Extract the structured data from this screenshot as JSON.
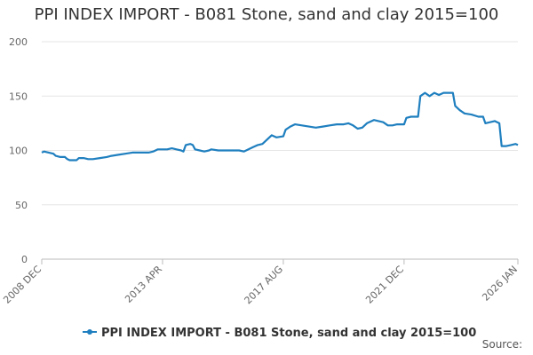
{
  "chart_data": {
    "type": "line",
    "title": "PPI INDEX IMPORT - B081 Stone, sand and clay 2015=100",
    "xlabel": "",
    "ylabel": "",
    "ylim": [
      0,
      200
    ],
    "yticks": [
      0,
      50,
      100,
      150,
      200
    ],
    "x_ticks": [
      "2008 DEC",
      "2013 APR",
      "2017 AUG",
      "2021 DEC",
      "2026 JAN"
    ],
    "x_range": [
      "2008-12",
      "2026-01"
    ],
    "grid": true,
    "legend_position": "bottom",
    "series": [
      {
        "name": "PPI INDEX IMPORT - B081 Stone, sand and clay 2015=100",
        "color": "#1f7fbf",
        "points": [
          [
            "2008-12",
            98
          ],
          [
            "2009-01",
            99
          ],
          [
            "2009-03",
            98
          ],
          [
            "2009-05",
            97
          ],
          [
            "2009-06",
            95
          ],
          [
            "2009-08",
            94
          ],
          [
            "2009-10",
            94
          ],
          [
            "2009-11",
            92
          ],
          [
            "2009-12",
            91
          ],
          [
            "2010-03",
            91
          ],
          [
            "2010-04",
            93
          ],
          [
            "2010-06",
            93
          ],
          [
            "2010-08",
            92
          ],
          [
            "2010-10",
            92
          ],
          [
            "2011-01",
            93
          ],
          [
            "2011-04",
            94
          ],
          [
            "2011-06",
            95
          ],
          [
            "2011-09",
            96
          ],
          [
            "2011-12",
            97
          ],
          [
            "2012-03",
            98
          ],
          [
            "2012-06",
            98
          ],
          [
            "2012-08",
            98
          ],
          [
            "2012-10",
            98
          ],
          [
            "2012-12",
            99
          ],
          [
            "2013-02",
            101
          ],
          [
            "2013-04",
            101
          ],
          [
            "2013-06",
            101
          ],
          [
            "2013-08",
            102
          ],
          [
            "2013-10",
            101
          ],
          [
            "2013-12",
            100
          ],
          [
            "2014-01",
            99
          ],
          [
            "2014-02",
            105
          ],
          [
            "2014-04",
            106
          ],
          [
            "2014-05",
            105
          ],
          [
            "2014-06",
            101
          ],
          [
            "2014-08",
            100
          ],
          [
            "2014-10",
            99
          ],
          [
            "2014-12",
            100
          ],
          [
            "2015-01",
            101
          ],
          [
            "2015-04",
            100
          ],
          [
            "2015-07",
            100
          ],
          [
            "2015-10",
            100
          ],
          [
            "2016-01",
            100
          ],
          [
            "2016-03",
            99
          ],
          [
            "2016-05",
            101
          ],
          [
            "2016-07",
            103
          ],
          [
            "2016-09",
            105
          ],
          [
            "2016-11",
            106
          ],
          [
            "2017-01",
            110
          ],
          [
            "2017-03",
            114
          ],
          [
            "2017-05",
            112
          ],
          [
            "2017-08",
            113
          ],
          [
            "2017-09",
            119
          ],
          [
            "2017-11",
            122
          ],
          [
            "2018-01",
            124
          ],
          [
            "2018-04",
            123
          ],
          [
            "2018-07",
            122
          ],
          [
            "2018-10",
            121
          ],
          [
            "2019-01",
            122
          ],
          [
            "2019-04",
            123
          ],
          [
            "2019-07",
            124
          ],
          [
            "2019-10",
            124
          ],
          [
            "2019-12",
            125
          ],
          [
            "2020-02",
            123
          ],
          [
            "2020-04",
            120
          ],
          [
            "2020-06",
            121
          ],
          [
            "2020-08",
            125
          ],
          [
            "2020-11",
            128
          ],
          [
            "2021-01",
            127
          ],
          [
            "2021-03",
            126
          ],
          [
            "2021-05",
            123
          ],
          [
            "2021-07",
            123
          ],
          [
            "2021-09",
            124
          ],
          [
            "2021-12",
            124
          ],
          [
            "2022-01",
            130
          ],
          [
            "2022-03",
            131
          ],
          [
            "2022-06",
            131
          ],
          [
            "2022-07",
            150
          ],
          [
            "2022-09",
            153
          ],
          [
            "2022-11",
            150
          ],
          [
            "2023-01",
            153
          ],
          [
            "2023-03",
            151
          ],
          [
            "2023-05",
            153
          ],
          [
            "2023-07",
            153
          ],
          [
            "2023-09",
            153
          ],
          [
            "2023-10",
            141
          ],
          [
            "2023-12",
            137
          ],
          [
            "2024-02",
            134
          ],
          [
            "2024-05",
            133
          ],
          [
            "2024-08",
            131
          ],
          [
            "2024-10",
            131
          ],
          [
            "2024-11",
            125
          ],
          [
            "2025-01",
            126
          ],
          [
            "2025-03",
            127
          ],
          [
            "2025-05",
            125
          ],
          [
            "2025-06",
            104
          ],
          [
            "2025-08",
            104
          ],
          [
            "2025-10",
            105
          ],
          [
            "2025-12",
            106
          ],
          [
            "2026-01",
            105
          ]
        ]
      }
    ]
  },
  "footer": {
    "source": "Source:"
  }
}
